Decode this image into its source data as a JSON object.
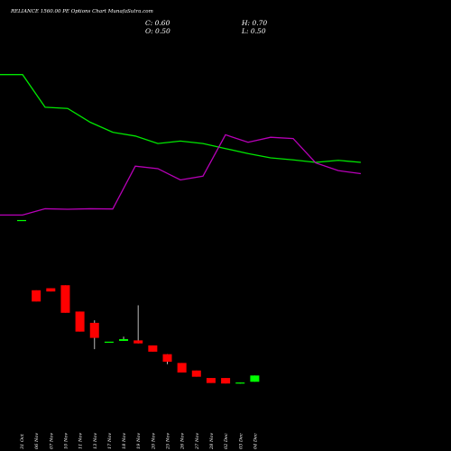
{
  "header": {
    "title": "RELIANCE 1560.00 PE Options  Chart MunafaSutra.com",
    "close": "C: 0.60",
    "high": "H: 0.70",
    "open": "O: 0.50",
    "low": "L: 0.50"
  },
  "chart_data": {
    "type": "candlestick",
    "categories": [
      "31 Oct",
      "06 Nov",
      "07 Nov",
      "10 Nov",
      "11 Nov",
      "13 Nov",
      "17 Nov",
      "18 Nov",
      "19 Nov",
      "20 Nov",
      "25 Nov",
      "26 Nov",
      "27 Nov",
      "28 Nov",
      "02 Dec",
      "03 Dec",
      "04 Dec"
    ],
    "candles": [
      {
        "o": 6.7,
        "h": 6.7,
        "l": 6.7,
        "c": 6.7
      },
      {
        "o": 3.9,
        "h": 3.9,
        "l": 3.45,
        "c": 3.45
      },
      {
        "o": 3.98,
        "h": 3.98,
        "l": 3.85,
        "c": 3.85
      },
      {
        "o": 4.1,
        "h": 4.1,
        "l": 3.0,
        "c": 3.0
      },
      {
        "o": 3.05,
        "h": 3.05,
        "l": 2.25,
        "c": 2.25
      },
      {
        "o": 2.6,
        "h": 2.7,
        "l": 1.55,
        "c": 2.0
      },
      {
        "o": 1.85,
        "h": 1.85,
        "l": 1.85,
        "c": 1.85
      },
      {
        "o": 1.88,
        "h": 2.05,
        "l": 1.88,
        "c": 1.95
      },
      {
        "o": 1.9,
        "h": 3.3,
        "l": 1.78,
        "c": 1.78
      },
      {
        "o": 1.7,
        "h": 1.7,
        "l": 1.45,
        "c": 1.45
      },
      {
        "o": 1.35,
        "h": 1.35,
        "l": 0.95,
        "c": 1.05
      },
      {
        "o": 1.0,
        "h": 1.0,
        "l": 0.62,
        "c": 0.62
      },
      {
        "o": 0.7,
        "h": 0.7,
        "l": 0.45,
        "c": 0.45
      },
      {
        "o": 0.4,
        "h": 0.4,
        "l": 0.2,
        "c": 0.2
      },
      {
        "o": 0.4,
        "h": 0.4,
        "l": 0.18,
        "c": 0.18
      },
      {
        "o": 0.22,
        "h": 0.22,
        "l": 0.18,
        "c": 0.22
      },
      {
        "o": 0.25,
        "h": 0.5,
        "l": 0.25,
        "c": 0.5
      }
    ],
    "series": [
      {
        "values": [
          12.5,
          12.5,
          11.2,
          11.15,
          10.6,
          10.2,
          10.05,
          9.75,
          9.85,
          9.75,
          9.55,
          9.35,
          9.18,
          9.1,
          9.0,
          9.08,
          9.0
        ]
      },
      {
        "values": [
          6.9,
          6.9,
          7.15,
          7.13,
          7.15,
          7.14,
          8.85,
          8.75,
          8.3,
          8.45,
          10.1,
          9.8,
          10.0,
          9.95,
          8.98,
          8.67,
          8.55
        ]
      }
    ],
    "ylim": [
      -1,
      14
    ]
  },
  "colors": {
    "background": "#000000",
    "bull": "#00ff00",
    "bear": "#ff0000",
    "series": [
      "#00e600",
      "#b800b8"
    ]
  }
}
